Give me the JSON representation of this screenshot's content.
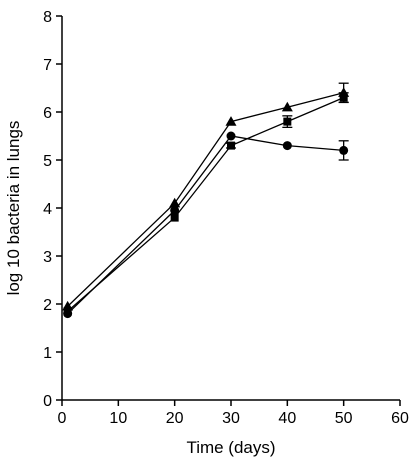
{
  "chart_data": {
    "type": "line",
    "title": "",
    "xlabel": "Time (days)",
    "ylabel": "log 10 bacteria in lungs",
    "xlim": [
      0,
      60
    ],
    "ylim": [
      0,
      8
    ],
    "xticks": [
      0,
      10,
      20,
      30,
      40,
      50,
      60
    ],
    "yticks": [
      0,
      1,
      2,
      3,
      4,
      5,
      6,
      7,
      8
    ],
    "grid": false,
    "series": [
      {
        "marker": "triangle",
        "points": [
          {
            "x": 1,
            "y": 1.95,
            "err": 0
          },
          {
            "x": 20,
            "y": 4.1,
            "err": 0
          },
          {
            "x": 30,
            "y": 5.8,
            "err": 0
          },
          {
            "x": 40,
            "y": 6.1,
            "err": 0
          },
          {
            "x": 50,
            "y": 6.4,
            "err": 0.2
          }
        ]
      },
      {
        "marker": "square",
        "points": [
          {
            "x": 1,
            "y": 1.85,
            "err": 0
          },
          {
            "x": 20,
            "y": 3.8,
            "err": 0
          },
          {
            "x": 30,
            "y": 5.3,
            "err": 0.05
          },
          {
            "x": 40,
            "y": 5.8,
            "err": 0.12
          },
          {
            "x": 50,
            "y": 6.3,
            "err": 0.1
          }
        ]
      },
      {
        "marker": "circle",
        "points": [
          {
            "x": 1,
            "y": 1.8,
            "err": 0
          },
          {
            "x": 20,
            "y": 3.95,
            "err": 0
          },
          {
            "x": 30,
            "y": 5.5,
            "err": 0
          },
          {
            "x": 40,
            "y": 5.3,
            "err": 0
          },
          {
            "x": 50,
            "y": 5.2,
            "err": 0.2
          }
        ]
      }
    ]
  }
}
